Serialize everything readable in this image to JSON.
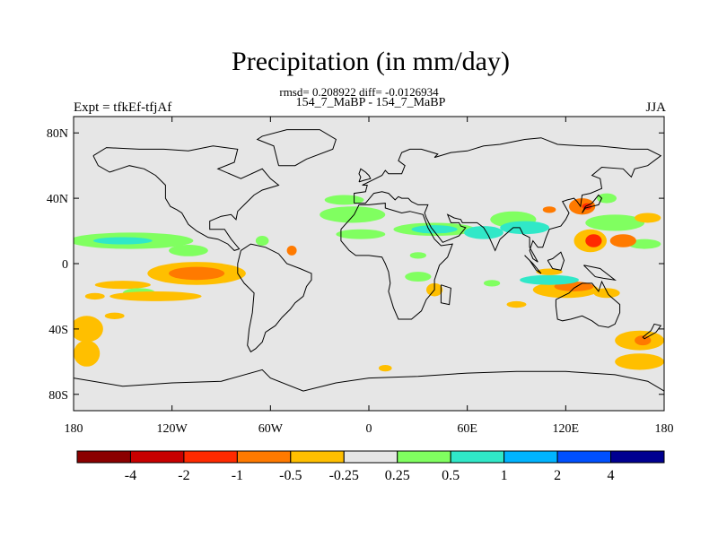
{
  "header": {
    "title": "Precipitation (in mm/day)",
    "stats": "rmsd= 0.208922 diff= -0.0126934",
    "comparison": "154_7_MaBP - 154_7_MaBP",
    "left_label": "Expt = tfkEf-tfjAf",
    "right_label": "JJA"
  },
  "chart_data": {
    "type": "heatmap",
    "title": "Precipitation (in mm/day)",
    "xlabel": "",
    "ylabel": "",
    "xlim": [
      -180,
      180
    ],
    "ylim": [
      -90,
      90
    ],
    "x_ticks": [
      {
        "value": -180,
        "label": "180"
      },
      {
        "value": -120,
        "label": "120W"
      },
      {
        "value": -60,
        "label": "60W"
      },
      {
        "value": 0,
        "label": "0"
      },
      {
        "value": 60,
        "label": "60E"
      },
      {
        "value": 120,
        "label": "120E"
      },
      {
        "value": 180,
        "label": "180"
      }
    ],
    "y_ticks": [
      {
        "value": 80,
        "label": "80N"
      },
      {
        "value": 40,
        "label": "40N"
      },
      {
        "value": 0,
        "label": "0"
      },
      {
        "value": -40,
        "label": "40S"
      },
      {
        "value": -80,
        "label": "80S"
      }
    ],
    "colorbar": {
      "colors": [
        "#8b0000",
        "#c80000",
        "#ff2a00",
        "#ff7a00",
        "#ffbf00",
        "#e6e6e6",
        "#80ff60",
        "#30e8c8",
        "#00b4ff",
        "#0050ff",
        "#000090"
      ],
      "labels": [
        "-4",
        "-2",
        "-1",
        "-0.5",
        "-0.25",
        "0.25",
        "0.5",
        "1",
        "2",
        "4"
      ]
    },
    "anomaly_regions": [
      {
        "lon": -145,
        "lat": 14,
        "rlon": 38,
        "rlat": 5,
        "level": 6
      },
      {
        "lon": -150,
        "lat": 14,
        "rlon": 18,
        "rlat": 2.2,
        "level": 7
      },
      {
        "lon": -110,
        "lat": 8,
        "rlon": 12,
        "rlat": 3.5,
        "level": 6
      },
      {
        "lon": -172,
        "lat": -40,
        "rlon": 10,
        "rlat": 8,
        "level": 4
      },
      {
        "lon": -172,
        "lat": -55,
        "rlon": 8,
        "rlat": 8,
        "level": 4
      },
      {
        "lon": -105,
        "lat": -6,
        "rlon": 30,
        "rlat": 7,
        "level": 4
      },
      {
        "lon": -105,
        "lat": -6,
        "rlon": 17,
        "rlat": 4,
        "level": 3
      },
      {
        "lon": -150,
        "lat": -13,
        "rlon": 17,
        "rlat": 2.5,
        "level": 4
      },
      {
        "lon": -140,
        "lat": -18,
        "rlon": 10,
        "rlat": 3,
        "level": 6
      },
      {
        "lon": -130,
        "lat": -20,
        "rlon": 28,
        "rlat": 3,
        "level": 4
      },
      {
        "lon": -167,
        "lat": -20,
        "rlon": 6,
        "rlat": 2,
        "level": 4
      },
      {
        "lon": -155,
        "lat": -32,
        "rlon": 6,
        "rlat": 2,
        "level": 4
      },
      {
        "lon": -65,
        "lat": 14,
        "rlon": 4,
        "rlat": 3,
        "level": 6
      },
      {
        "lon": -47,
        "lat": 8,
        "rlon": 3,
        "rlat": 3,
        "level": 3
      },
      {
        "lon": -10,
        "lat": 30,
        "rlon": 20,
        "rlat": 5,
        "level": 6
      },
      {
        "lon": -5,
        "lat": 18,
        "rlon": 15,
        "rlat": 3,
        "level": 6
      },
      {
        "lon": 40,
        "lat": 21,
        "rlon": 25,
        "rlat": 4,
        "level": 6
      },
      {
        "lon": 40,
        "lat": 21,
        "rlon": 14,
        "rlat": 2.5,
        "level": 7
      },
      {
        "lon": 70,
        "lat": 19,
        "rlon": 12,
        "rlat": 4,
        "level": 7
      },
      {
        "lon": 88,
        "lat": 27,
        "rlon": 14,
        "rlat": 5,
        "level": 6
      },
      {
        "lon": 95,
        "lat": 22,
        "rlon": 15,
        "rlat": 4,
        "level": 7
      },
      {
        "lon": 110,
        "lat": 33,
        "rlon": 4,
        "rlat": 2,
        "level": 3
      },
      {
        "lon": 130,
        "lat": 35,
        "rlon": 8,
        "rlat": 5,
        "level": 3
      },
      {
        "lon": 133,
        "lat": 35,
        "rlon": 3,
        "rlat": 2,
        "level": 2
      },
      {
        "lon": 145,
        "lat": 40,
        "rlon": 6,
        "rlat": 3,
        "level": 6
      },
      {
        "lon": 150,
        "lat": 25,
        "rlon": 18,
        "rlat": 5,
        "level": 6
      },
      {
        "lon": 168,
        "lat": 12,
        "rlon": 10,
        "rlat": 3,
        "level": 6
      },
      {
        "lon": 135,
        "lat": 14,
        "rlon": 10,
        "rlat": 7,
        "level": 4
      },
      {
        "lon": 137,
        "lat": 14,
        "rlon": 5,
        "rlat": 4,
        "level": 2
      },
      {
        "lon": 155,
        "lat": 14,
        "rlon": 8,
        "rlat": 4,
        "level": 3
      },
      {
        "lon": 170,
        "lat": 28,
        "rlon": 8,
        "rlat": 3,
        "level": 4
      },
      {
        "lon": 120,
        "lat": -16,
        "rlon": 20,
        "rlat": 5,
        "level": 4
      },
      {
        "lon": 125,
        "lat": -14,
        "rlon": 12,
        "rlat": 3,
        "level": 3
      },
      {
        "lon": 110,
        "lat": -10,
        "rlon": 18,
        "rlat": 3,
        "level": 7
      },
      {
        "lon": 110,
        "lat": -5,
        "rlon": 8,
        "rlat": 2,
        "level": 4
      },
      {
        "lon": 145,
        "lat": -18,
        "rlon": 8,
        "rlat": 3,
        "level": 4
      },
      {
        "lon": 40,
        "lat": -16,
        "rlon": 5,
        "rlat": 4,
        "level": 4
      },
      {
        "lon": 30,
        "lat": -8,
        "rlon": 8,
        "rlat": 3,
        "level": 6
      },
      {
        "lon": 75,
        "lat": -12,
        "rlon": 5,
        "rlat": 2,
        "level": 6
      },
      {
        "lon": 90,
        "lat": -25,
        "rlon": 6,
        "rlat": 2,
        "level": 4
      },
      {
        "lon": 165,
        "lat": -47,
        "rlon": 15,
        "rlat": 6,
        "level": 4
      },
      {
        "lon": 167,
        "lat": -47,
        "rlon": 5,
        "rlat": 3,
        "level": 3
      },
      {
        "lon": 165,
        "lat": -60,
        "rlon": 15,
        "rlat": 5,
        "level": 4
      },
      {
        "lon": 10,
        "lat": -64,
        "rlon": 4,
        "rlat": 2,
        "level": 4
      },
      {
        "lon": -15,
        "lat": 39,
        "rlon": 12,
        "rlat": 3,
        "level": 6
      },
      {
        "lon": 30,
        "lat": 5,
        "rlon": 5,
        "rlat": 2,
        "level": 6
      }
    ]
  }
}
